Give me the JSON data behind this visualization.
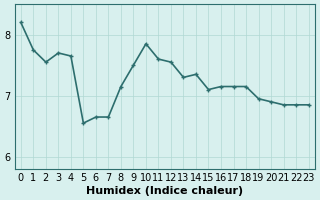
{
  "x": [
    0,
    1,
    2,
    3,
    4,
    5,
    6,
    7,
    8,
    9,
    10,
    11,
    12,
    13,
    14,
    15,
    16,
    17,
    18,
    19,
    20,
    21,
    22,
    23
  ],
  "y": [
    8.2,
    7.75,
    7.55,
    7.7,
    7.65,
    6.55,
    6.65,
    6.65,
    7.15,
    7.5,
    7.85,
    7.6,
    7.55,
    7.3,
    7.35,
    7.1,
    7.15,
    7.15,
    7.15,
    6.95,
    6.9,
    6.85,
    6.85,
    6.85
  ],
  "marker_x": [
    0,
    2,
    3,
    4,
    5,
    6,
    7,
    8,
    9,
    10,
    11,
    12,
    13,
    14,
    15,
    16,
    17,
    18,
    19,
    20,
    21,
    22,
    23
  ],
  "line_color": "#2d6e6e",
  "bg_color": "#d8f0ee",
  "grid_color": "#b0d8d4",
  "xlabel": "Humidex (Indice chaleur)",
  "ylabel": "",
  "yticks": [
    6,
    7,
    8
  ],
  "xticks": [
    0,
    1,
    2,
    3,
    4,
    5,
    6,
    7,
    8,
    9,
    10,
    11,
    12,
    13,
    14,
    15,
    16,
    17,
    18,
    19,
    20,
    21,
    22,
    23
  ],
  "xlim": [
    -0.5,
    23.5
  ],
  "ylim": [
    5.8,
    8.5
  ],
  "title": "",
  "font_size": 7,
  "marker_size": 3,
  "line_width": 1.2
}
